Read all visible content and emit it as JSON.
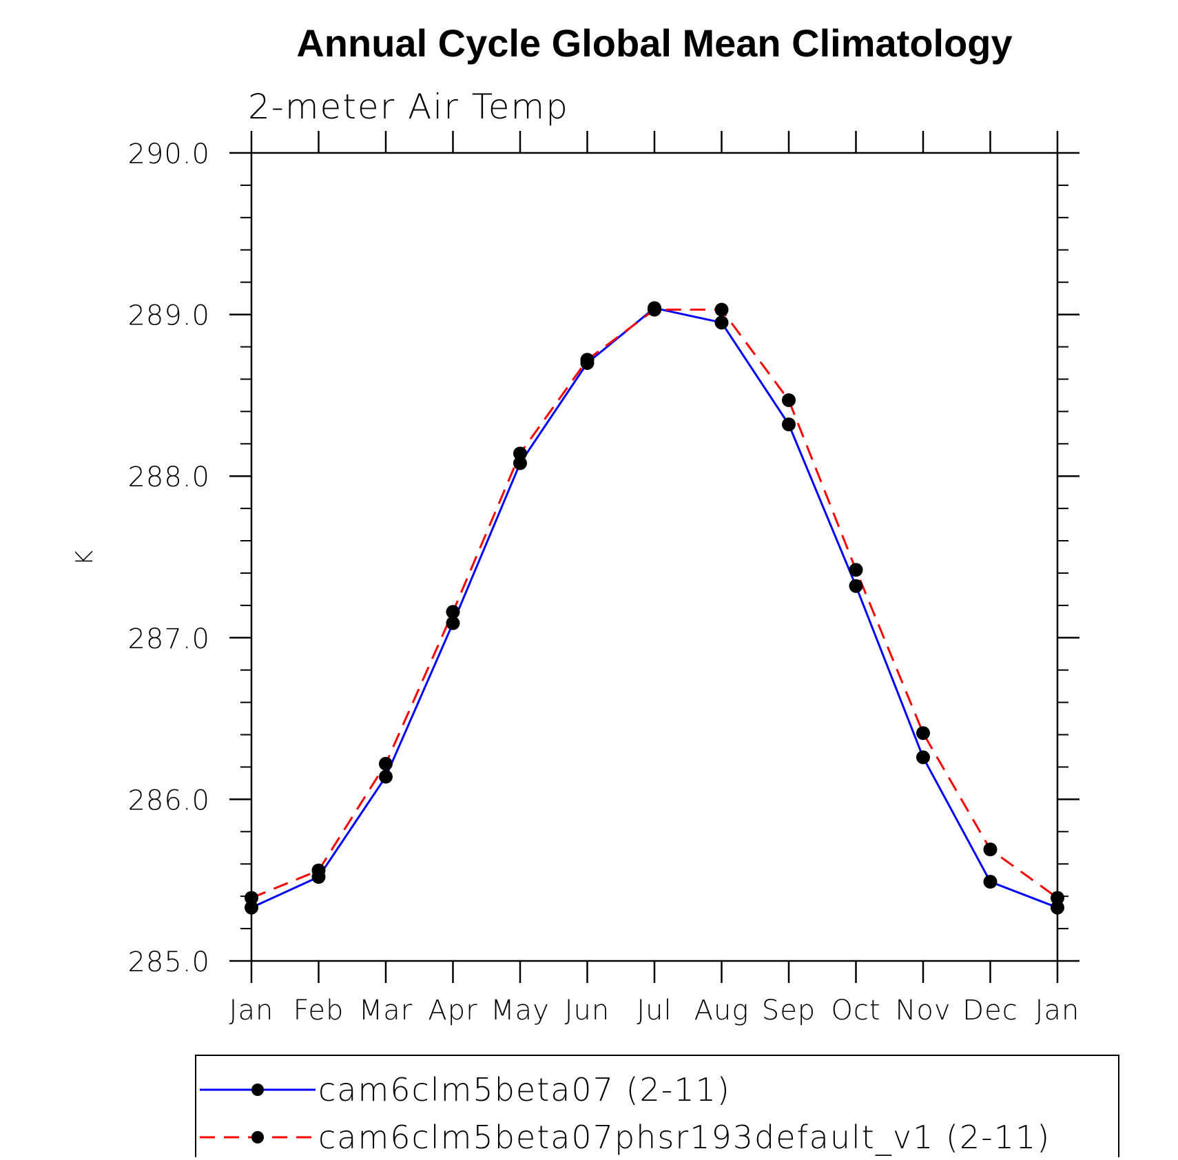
{
  "chart_data": {
    "type": "line",
    "title": "Annual Cycle Global Mean Climatology",
    "subtitle": "2-meter Air Temp",
    "xlabel": "",
    "ylabel": "K",
    "categories": [
      "Jan",
      "Feb",
      "Mar",
      "Apr",
      "May",
      "Jun",
      "Jul",
      "Aug",
      "Sep",
      "Oct",
      "Nov",
      "Dec",
      "Jan"
    ],
    "ylim": [
      285.0,
      290.0
    ],
    "yticks": [
      "285.0",
      "286.0",
      "287.0",
      "288.0",
      "289.0",
      "290.0"
    ],
    "grid": false,
    "legend_position": "bottom",
    "series": [
      {
        "name": "cam6clm5beta07 (2-11)",
        "color": "#0000ff",
        "line_style": "solid",
        "marker": "circle",
        "values": [
          285.33,
          285.52,
          286.14,
          287.09,
          288.08,
          288.7,
          289.04,
          288.95,
          288.32,
          287.32,
          286.26,
          285.49,
          285.33
        ]
      },
      {
        "name": "cam6clm5beta07phsr193default_v1 (2-11)",
        "color": "#ff0000",
        "line_style": "dashed",
        "marker": "circle",
        "values": [
          285.39,
          285.56,
          286.22,
          287.16,
          288.14,
          288.72,
          289.03,
          289.03,
          288.47,
          287.42,
          286.41,
          285.69,
          285.39
        ]
      }
    ]
  }
}
